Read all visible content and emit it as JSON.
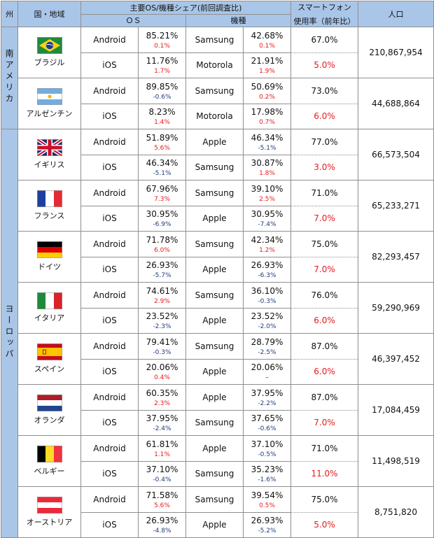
{
  "header": {
    "region": "州",
    "country": "国・地域",
    "share_title": "主要OS/機種シェア(前回調査比)",
    "os": "ＯＳ",
    "model": "機種",
    "smartphone": "スマートフォン",
    "usage_rate": "使用率（前年比）",
    "population": "人口"
  },
  "regions": [
    {
      "name": "南アメリカ",
      "row_span": 4
    },
    {
      "name": "ヨーロッパ",
      "row_span": 16
    }
  ],
  "countries": [
    {
      "name": "ブラジル",
      "flag": "brazil-flag",
      "rows": [
        {
          "os": "Android",
          "os_share": "85.21%",
          "os_change": "0.1%",
          "model": "Samsung",
          "model_share": "42.68%",
          "model_change": "0.1%",
          "rate": "67.0%"
        },
        {
          "os": "iOS",
          "os_share": "11.76%",
          "os_change": "1.7%",
          "model": "Motorola",
          "model_share": "21.91%",
          "model_change": "1.9%",
          "rate": "5.0%"
        }
      ],
      "population": "210,867,954"
    },
    {
      "name": "アルゼンチン",
      "flag": "argentina-flag",
      "rows": [
        {
          "os": "Android",
          "os_share": "89.85%",
          "os_change": "-0.6%",
          "model": "Samsung",
          "model_share": "50.69%",
          "model_change": "0.2%",
          "rate": "73.0%"
        },
        {
          "os": "iOS",
          "os_share": "8.23%",
          "os_change": "1.4%",
          "model": "Motorola",
          "model_share": "17.98%",
          "model_change": "0.7%",
          "rate": "6.0%"
        }
      ],
      "population": "44,688,864"
    },
    {
      "name": "イギリス",
      "flag": "uk-flag",
      "rows": [
        {
          "os": "Android",
          "os_share": "51.89%",
          "os_change": "5.6%",
          "model": "Apple",
          "model_share": "46.34%",
          "model_change": "-5.1%",
          "rate": "77.0%"
        },
        {
          "os": "iOS",
          "os_share": "46.34%",
          "os_change": "-5.1%",
          "model": "Samsung",
          "model_share": "30.87%",
          "model_change": "1.8%",
          "rate": "3.0%"
        }
      ],
      "population": "66,573,504"
    },
    {
      "name": "フランス",
      "flag": "france-flag",
      "rows": [
        {
          "os": "Android",
          "os_share": "67.96%",
          "os_change": "7.3%",
          "model": "Samsung",
          "model_share": "39.10%",
          "model_change": "2.5%",
          "rate": "71.0%"
        },
        {
          "os": "iOS",
          "os_share": "30.95%",
          "os_change": "-6.9%",
          "model": "Apple",
          "model_share": "30.95%",
          "model_change": "-7.4%",
          "rate": "7.0%"
        }
      ],
      "population": "65,233,271"
    },
    {
      "name": "ドイツ",
      "flag": "germany-flag",
      "rows": [
        {
          "os": "Android",
          "os_share": "71.78%",
          "os_change": "6.0%",
          "model": "Samsung",
          "model_share": "42.34%",
          "model_change": "1.2%",
          "rate": "75.0%"
        },
        {
          "os": "iOS",
          "os_share": "26.93%",
          "os_change": "-5.7%",
          "model": "Apple",
          "model_share": "26.93%",
          "model_change": "-6.3%",
          "rate": "7.0%"
        }
      ],
      "population": "82,293,457"
    },
    {
      "name": "イタリア",
      "flag": "italy-flag",
      "rows": [
        {
          "os": "Android",
          "os_share": "74.61%",
          "os_change": "2.9%",
          "model": "Samsung",
          "model_share": "36.10%",
          "model_change": "-0.3%",
          "rate": "76.0%"
        },
        {
          "os": "iOS",
          "os_share": "23.52%",
          "os_change": "-2.3%",
          "model": "Apple",
          "model_share": "23.52%",
          "model_change": "-2.0%",
          "rate": "6.0%"
        }
      ],
      "population": "59,290,969"
    },
    {
      "name": "スペイン",
      "flag": "spain-flag",
      "rows": [
        {
          "os": "Android",
          "os_share": "79.41%",
          "os_change": "-0.3%",
          "model": "Samsung",
          "model_share": "28.79%",
          "model_change": "-2.5%",
          "rate": "87.0%"
        },
        {
          "os": "iOS",
          "os_share": "20.06%",
          "os_change": "0.4%",
          "model": "Apple",
          "model_share": "20.06%",
          "model_change": "–",
          "rate": "6.0%"
        }
      ],
      "population": "46,397,452"
    },
    {
      "name": "オランダ",
      "flag": "netherlands-flag",
      "rows": [
        {
          "os": "Android",
          "os_share": "60.35%",
          "os_change": "2.3%",
          "model": "Apple",
          "model_share": "37.95%",
          "model_change": "-2.2%",
          "rate": "87.0%"
        },
        {
          "os": "iOS",
          "os_share": "37.95%",
          "os_change": "-2.4%",
          "model": "Samsung",
          "model_share": "37.65%",
          "model_change": "-0.6%",
          "rate": "7.0%"
        }
      ],
      "population": "17,084,459"
    },
    {
      "name": "ベルギー",
      "flag": "belgium-flag",
      "rows": [
        {
          "os": "Android",
          "os_share": "61.81%",
          "os_change": "1.1%",
          "model": "Apple",
          "model_share": "37.10%",
          "model_change": "-0.5%",
          "rate": "71.0%"
        },
        {
          "os": "iOS",
          "os_share": "37.10%",
          "os_change": "-0.4%",
          "model": "Samsung",
          "model_share": "35.23%",
          "model_change": "-1.6%",
          "rate": "11.0%"
        }
      ],
      "population": "11,498,519"
    },
    {
      "name": "オーストリア",
      "flag": "austria-flag",
      "rows": [
        {
          "os": "Android",
          "os_share": "71.58%",
          "os_change": "5.6%",
          "model": "Samsung",
          "model_share": "39.54%",
          "model_change": "0.5%",
          "rate": "75.0%"
        },
        {
          "os": "iOS",
          "os_share": "26.93%",
          "os_change": "-4.8%",
          "model": "Apple",
          "model_share": "26.93%",
          "model_change": "-5.2%",
          "rate": "5.0%"
        }
      ],
      "population": "8,751,820"
    }
  ],
  "colors": {
    "header_bg": "#a9c6e8",
    "positive_change": "#e8191d",
    "negative_change": "#1f3d78",
    "grid": "#8f8f8f"
  }
}
